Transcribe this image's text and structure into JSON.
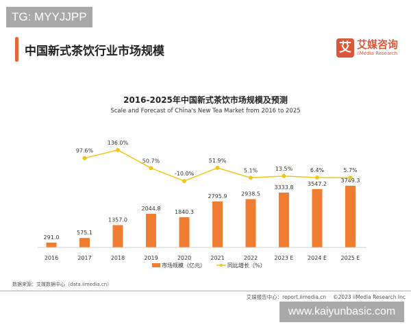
{
  "watermark_top": "TG: MYYJJPP",
  "header_title": "中国新式茶饮行业市场规模",
  "logo": {
    "mark": "艾",
    "cn": "艾媒咨询",
    "en": "iiMedia Research"
  },
  "chart_data": {
    "type": "bar+line",
    "title": "2016-2025年中国新式茶饮市场规模及预测",
    "subtitle": "Scale and Forecast of China's New Tea Market from 2016 to 2025",
    "categories": [
      "2016",
      "2017",
      "2018",
      "2019",
      "2020",
      "2021",
      "2022",
      "2023 E",
      "2024 E",
      "2025 E"
    ],
    "series": [
      {
        "name": "市场规模（亿元）",
        "type": "bar",
        "color": "#ee7d31",
        "values": [
          291.0,
          575.1,
          1357.0,
          2044.8,
          1840.3,
          2795.9,
          2938.5,
          3333.8,
          3547.2,
          3749.3
        ],
        "labels": [
          "291.0",
          "575.1",
          "1357.0",
          "2044.8",
          "1840.3",
          "2795.9",
          "2938.5",
          "3333.8",
          "3547.2",
          "3749.3"
        ]
      },
      {
        "name": "同比增长（%）",
        "type": "line",
        "color": "#f0c419",
        "values": [
          null,
          97.6,
          136.0,
          50.7,
          -10.0,
          51.9,
          5.1,
          13.5,
          6.4,
          5.7
        ],
        "labels": [
          "",
          "97.6%",
          "136.0%",
          "50.7%",
          "-10.0%",
          "51.9%",
          "5.1%",
          "13.5%",
          "6.4%",
          "5.7%"
        ]
      }
    ],
    "legend": "bottom"
  },
  "source": "数据来源：艾媒数据中心（data.iimedia.cn）",
  "footer": "艾媒报告中心：report.iimedia.cn　 ©2023  iiMedia Research  Inc",
  "watermark_bottom": "www.kaiyunbasic.com"
}
